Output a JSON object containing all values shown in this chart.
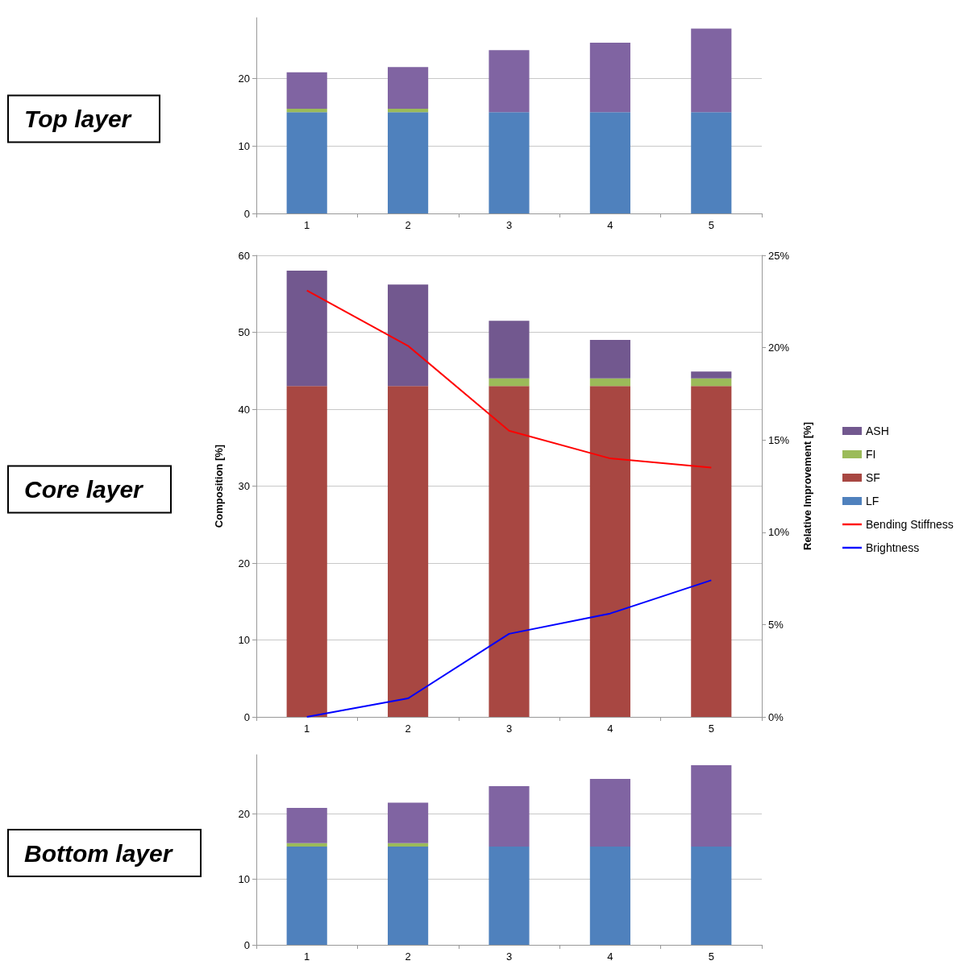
{
  "chart_data": [
    {
      "type": "bar",
      "title": "Top layer",
      "categories": [
        "1",
        "2",
        "3",
        "4",
        "5"
      ],
      "stacked": true,
      "ylim": [
        0,
        29
      ],
      "yticks": [
        0,
        10,
        20
      ],
      "grid": "y",
      "legend": false,
      "series": [
        {
          "color": "#4f81bd",
          "values": [
            15,
            15,
            15,
            15,
            15
          ]
        },
        {
          "color": "#9bbb59",
          "values": [
            0.5,
            0.5,
            0,
            0,
            0
          ]
        },
        {
          "color": "#8064a2",
          "values": [
            5.4,
            6.2,
            9.2,
            10.3,
            12.4
          ]
        }
      ]
    },
    {
      "type": "bar",
      "title": "Core layer",
      "categories": [
        "1",
        "2",
        "3",
        "4",
        "5"
      ],
      "stacked": true,
      "ylim": [
        0,
        60
      ],
      "yticks": [
        0,
        10,
        20,
        30,
        40,
        50,
        60
      ],
      "ylabel": "Composition [%]",
      "y2label": "Relative Improvement [%]",
      "y2lim": [
        0,
        25
      ],
      "y2ticks": [
        {
          "value": 0,
          "label": "0%"
        },
        {
          "value": 5,
          "label": "5%"
        },
        {
          "value": 10,
          "label": "10%"
        },
        {
          "value": 15,
          "label": "15%"
        },
        {
          "value": 20,
          "label": "20%"
        },
        {
          "value": 25,
          "label": "25%"
        }
      ],
      "grid": "y",
      "legend": "right",
      "marker": "none",
      "line_style": "solid",
      "series": [
        {
          "name": "LF",
          "color": "#4f81bd",
          "values": [
            0,
            0,
            0,
            0,
            0
          ]
        },
        {
          "name": "SF",
          "color": "#a84742",
          "values": [
            43,
            43,
            43,
            43,
            43
          ]
        },
        {
          "name": "FI",
          "color": "#9bbb59",
          "values": [
            0,
            0,
            1,
            1,
            1
          ]
        },
        {
          "name": "ASH",
          "color": "#72588f",
          "values": [
            15,
            13.2,
            7.5,
            5,
            0.9
          ]
        },
        {
          "name": "Bending Stiffness",
          "type": "line",
          "axis": "y2",
          "color": "#ff0000",
          "values": [
            23.1,
            20.1,
            15.5,
            14.0,
            13.5
          ]
        },
        {
          "name": "Brightness",
          "type": "line",
          "axis": "y2",
          "color": "#0000ff",
          "values": [
            0,
            1.0,
            4.5,
            5.6,
            7.4
          ]
        }
      ]
    },
    {
      "type": "bar",
      "title": "Bottom layer",
      "categories": [
        "1",
        "2",
        "3",
        "4",
        "5"
      ],
      "stacked": true,
      "ylim": [
        0,
        29
      ],
      "yticks": [
        0,
        10,
        20
      ],
      "grid": "y",
      "legend": false,
      "series": [
        {
          "color": "#4f81bd",
          "values": [
            15,
            15,
            15,
            15,
            15
          ]
        },
        {
          "color": "#9bbb59",
          "values": [
            0.5,
            0.5,
            0,
            0,
            0
          ]
        },
        {
          "color": "#8064a2",
          "values": [
            5.4,
            6.2,
            9.2,
            10.3,
            12.4
          ]
        }
      ]
    }
  ]
}
